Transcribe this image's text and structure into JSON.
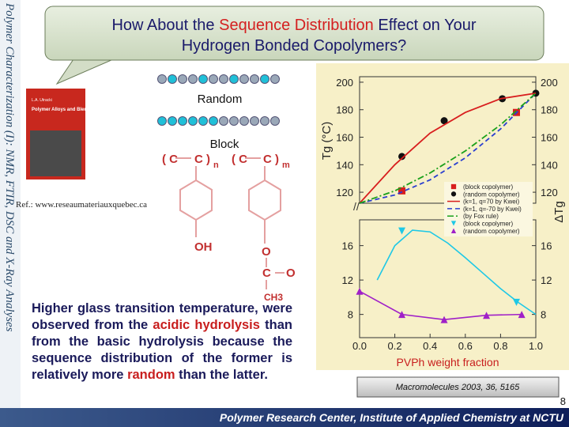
{
  "sidebar": "Polymer Characterization (I): NMR, FTIR, DSC and X-Ray Analyses",
  "title": {
    "part1": "How About the ",
    "highlight": "Sequence Distribution",
    "part2": " Effect on Your",
    "line2": "Hydrogen Bonded Copolymers?"
  },
  "book": {
    "author": "L.A. Utracki",
    "title": "Polymer Alloys and Blends"
  },
  "sequences": {
    "random": "Random",
    "block": "Block"
  },
  "structure": {
    "left_open": "( C",
    "left_close": "C )",
    "n": "n",
    "right_open": "( C",
    "right_close": "C )",
    "m": "m",
    "oh": "OH",
    "o1": "O",
    "c": "C",
    "o2": "O",
    "ch3": "CH3"
  },
  "reference": "Ref.: www.reseaumateriauxquebec.ca",
  "paragraph": [
    {
      "text": "Higher glass transition temperature, were observed from the ",
      "highlight": false
    },
    {
      "text": "acidic hydrolysis",
      "highlight": true
    },
    {
      "text": " than from the basic hydrolysis because the sequence distribution of the former is relatively more ",
      "highlight": false
    },
    {
      "text": "random",
      "highlight": true
    },
    {
      "text": " than the latter.",
      "highlight": false
    }
  ],
  "chart_data": {
    "type": "line",
    "xlabel": "PVPh weight fraction",
    "xlim": [
      0,
      1
    ],
    "xticks": [
      {
        "value": 0,
        "label": "0.0"
      },
      {
        "value": 0.2,
        "label": "0.2"
      },
      {
        "value": 0.4,
        "label": "0.4"
      },
      {
        "value": 0.6,
        "label": "0.6"
      },
      {
        "value": 0.8,
        "label": "0.8"
      },
      {
        "value": 1,
        "label": "1.0"
      }
    ],
    "panels": [
      {
        "ylabel": "Tg (°C)",
        "ylim": [
          112,
          204
        ],
        "yticks": [
          120,
          140,
          160,
          180,
          200
        ]
      },
      {
        "ylabel": "ΔTg",
        "ylim": [
          5.3,
          19
        ],
        "yticks": [
          8,
          12,
          16
        ]
      }
    ],
    "legend": "lower right",
    "series": [
      {
        "name": "(block copolymer)",
        "panel": 0,
        "color": "#d81e1e",
        "marker": "square",
        "x": [
          0.24,
          0.89
        ],
        "values": [
          121,
          178
        ]
      },
      {
        "name": "(random copolymer)",
        "panel": 0,
        "color": "#111111",
        "marker": "circle",
        "x": [
          0.24,
          0.48,
          0.81,
          1
        ],
        "values": [
          146,
          172,
          188,
          192
        ]
      },
      {
        "name": "(k=1, q=70 by Kwei)",
        "panel": 0,
        "color": "#d81e1e",
        "dash": "none",
        "x": [
          0,
          0.2,
          0.4,
          0.6,
          0.8,
          1
        ],
        "values": [
          112,
          140,
          163,
          178,
          188,
          192
        ]
      },
      {
        "name": "(k=1, q=-70 by Kwei)",
        "panel": 0,
        "color": "#2a3fd0",
        "dash": "6 4",
        "x": [
          0,
          0.2,
          0.4,
          0.6,
          0.8,
          1
        ],
        "values": [
          112,
          118,
          129,
          145,
          166,
          192
        ]
      },
      {
        "name": "(by Fox rule)",
        "panel": 0,
        "color": "#1aa01a",
        "dash": "8 3 2 3",
        "x": [
          0,
          0.2,
          0.4,
          0.6,
          0.8,
          1
        ],
        "values": [
          112,
          121,
          134,
          150,
          169,
          192
        ]
      },
      {
        "name": "(block copolymer)",
        "panel": 1,
        "color": "#1ec8e6",
        "marker": "triangle-down",
        "x": [
          0.24,
          0.89
        ],
        "values": [
          17.7,
          9.4
        ],
        "fit": {
          "x": [
            0.1,
            0.2,
            0.3,
            0.4,
            0.5,
            0.6,
            0.7,
            0.8,
            0.9,
            1
          ],
          "values": [
            12,
            16,
            17.8,
            17.6,
            16.3,
            14.6,
            12.8,
            11,
            9.4,
            8
          ]
        }
      },
      {
        "name": "(random copolymer)",
        "panel": 1,
        "color": "#a020c8",
        "marker": "triangle-up",
        "connect": true,
        "x": [
          0,
          0.24,
          0.48,
          0.72,
          0.92
        ],
        "values": [
          10.7,
          8,
          7.4,
          7.9,
          8
        ]
      }
    ]
  },
  "citation": "Macromolecules 2003, 36, 5165",
  "page_number": "8",
  "footer": "Polymer Research Center, Institute of Applied Chemistry at NCTU"
}
